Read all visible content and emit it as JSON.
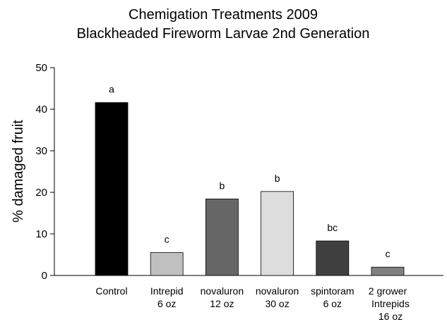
{
  "chart_data": {
    "type": "bar",
    "title": "Chemigation Treatments 2009",
    "subtitle": "Blackheaded Fireworm Larvae 2nd Generation",
    "y_label": "% damaged fruit",
    "categories": [
      "Control",
      "Intrepid\n6 oz",
      "novaluron\n12 oz",
      "novaluron\n30 oz",
      "spintoram\n6 oz",
      "2 grower\nIntrepids\n16 oz"
    ],
    "values": [
      41.6,
      5.5,
      18.4,
      20.2,
      8.3,
      2.0
    ],
    "colors": [
      "#000000",
      "#c0c0c0",
      "#666666",
      "#dddddd",
      "#404040",
      "#808080"
    ],
    "annotations": [
      "a",
      "c",
      "b",
      "b",
      "bc",
      "c"
    ],
    "ylim": [
      0,
      50
    ],
    "yticks": [
      0,
      10,
      20,
      30,
      40,
      50
    ],
    "grid": false
  }
}
